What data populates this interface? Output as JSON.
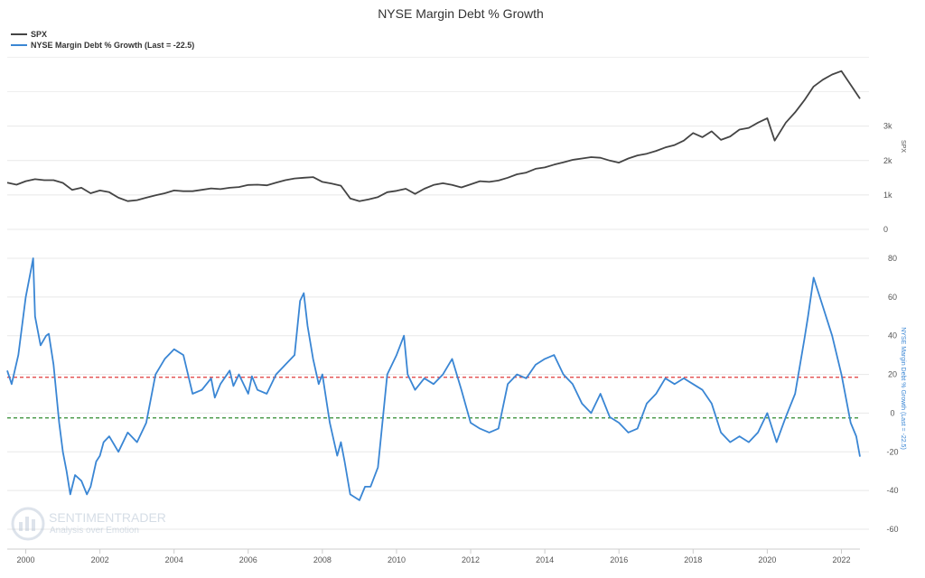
{
  "chart_data": {
    "type": "line",
    "title": "NYSE Margin Debt % Growth",
    "legend_position": "top-left",
    "x_ticks": [
      "2000",
      "2002",
      "2004",
      "2006",
      "2008",
      "2010",
      "2012",
      "2014",
      "2016",
      "2018",
      "2020",
      "2022"
    ],
    "x_range": [
      1999.5,
      2022.5
    ],
    "series": [
      {
        "name": "SPX",
        "color": "#444444",
        "axis_label": "SPX",
        "y_ticks": [
          "0",
          "1k",
          "2k",
          "3k"
        ],
        "ylim": [
          0,
          5300
        ],
        "points": [
          [
            1999.5,
            1360
          ],
          [
            1999.75,
            1300
          ],
          [
            2000.0,
            1400
          ],
          [
            2000.25,
            1460
          ],
          [
            2000.5,
            1430
          ],
          [
            2000.75,
            1430
          ],
          [
            2001.0,
            1350
          ],
          [
            2001.25,
            1150
          ],
          [
            2001.5,
            1210
          ],
          [
            2001.75,
            1050
          ],
          [
            2002.0,
            1130
          ],
          [
            2002.25,
            1080
          ],
          [
            2002.5,
            920
          ],
          [
            2002.75,
            820
          ],
          [
            2003.0,
            850
          ],
          [
            2003.25,
            920
          ],
          [
            2003.5,
            990
          ],
          [
            2003.75,
            1050
          ],
          [
            2004.0,
            1130
          ],
          [
            2004.25,
            1110
          ],
          [
            2004.5,
            1110
          ],
          [
            2004.75,
            1150
          ],
          [
            2005.0,
            1190
          ],
          [
            2005.25,
            1170
          ],
          [
            2005.5,
            1210
          ],
          [
            2005.75,
            1230
          ],
          [
            2006.0,
            1290
          ],
          [
            2006.25,
            1300
          ],
          [
            2006.5,
            1280
          ],
          [
            2006.75,
            1360
          ],
          [
            2007.0,
            1430
          ],
          [
            2007.25,
            1480
          ],
          [
            2007.5,
            1500
          ],
          [
            2007.75,
            1520
          ],
          [
            2008.0,
            1380
          ],
          [
            2008.25,
            1330
          ],
          [
            2008.5,
            1270
          ],
          [
            2008.75,
            900
          ],
          [
            2009.0,
            820
          ],
          [
            2009.25,
            870
          ],
          [
            2009.5,
            940
          ],
          [
            2009.75,
            1080
          ],
          [
            2010.0,
            1120
          ],
          [
            2010.25,
            1180
          ],
          [
            2010.5,
            1030
          ],
          [
            2010.75,
            1180
          ],
          [
            2011.0,
            1290
          ],
          [
            2011.25,
            1340
          ],
          [
            2011.5,
            1290
          ],
          [
            2011.75,
            1220
          ],
          [
            2012.0,
            1310
          ],
          [
            2012.25,
            1400
          ],
          [
            2012.5,
            1380
          ],
          [
            2012.75,
            1420
          ],
          [
            2013.0,
            1500
          ],
          [
            2013.25,
            1600
          ],
          [
            2013.5,
            1650
          ],
          [
            2013.75,
            1760
          ],
          [
            2014.0,
            1800
          ],
          [
            2014.25,
            1880
          ],
          [
            2014.5,
            1950
          ],
          [
            2014.75,
            2020
          ],
          [
            2015.0,
            2060
          ],
          [
            2015.25,
            2100
          ],
          [
            2015.5,
            2080
          ],
          [
            2015.75,
            2000
          ],
          [
            2016.0,
            1940
          ],
          [
            2016.25,
            2060
          ],
          [
            2016.5,
            2150
          ],
          [
            2016.75,
            2200
          ],
          [
            2017.0,
            2280
          ],
          [
            2017.25,
            2380
          ],
          [
            2017.5,
            2450
          ],
          [
            2017.75,
            2580
          ],
          [
            2018.0,
            2800
          ],
          [
            2018.25,
            2680
          ],
          [
            2018.5,
            2850
          ],
          [
            2018.75,
            2600
          ],
          [
            2019.0,
            2700
          ],
          [
            2019.25,
            2900
          ],
          [
            2019.5,
            2950
          ],
          [
            2019.75,
            3100
          ],
          [
            2020.0,
            3230
          ],
          [
            2020.2,
            2580
          ],
          [
            2020.5,
            3100
          ],
          [
            2020.75,
            3400
          ],
          [
            2021.0,
            3750
          ],
          [
            2021.25,
            4150
          ],
          [
            2021.5,
            4350
          ],
          [
            2021.75,
            4500
          ],
          [
            2022.0,
            4600
          ],
          [
            2022.25,
            4200
          ],
          [
            2022.5,
            3800
          ]
        ]
      },
      {
        "name": "NYSE Margin Debt % Growth (Last = -22.5)",
        "color": "#3a86d4",
        "axis_label": "NYSE Margin Debt % Growth (Last = -22.5)",
        "y_ticks": [
          "-60",
          "-40",
          "-20",
          "0",
          "20",
          "40",
          "60",
          "80"
        ],
        "ylim": [
          -60,
          80
        ],
        "points": [
          [
            1999.5,
            22
          ],
          [
            1999.62,
            15
          ],
          [
            1999.8,
            30
          ],
          [
            2000.0,
            60
          ],
          [
            2000.15,
            75
          ],
          [
            2000.2,
            80
          ],
          [
            2000.25,
            50
          ],
          [
            2000.4,
            35
          ],
          [
            2000.55,
            40
          ],
          [
            2000.62,
            41
          ],
          [
            2000.75,
            25
          ],
          [
            2000.9,
            -5
          ],
          [
            2001.0,
            -20
          ],
          [
            2001.1,
            -30
          ],
          [
            2001.2,
            -42
          ],
          [
            2001.33,
            -32
          ],
          [
            2001.5,
            -35
          ],
          [
            2001.65,
            -42
          ],
          [
            2001.75,
            -38
          ],
          [
            2001.9,
            -25
          ],
          [
            2002.0,
            -22
          ],
          [
            2002.1,
            -15
          ],
          [
            2002.25,
            -12
          ],
          [
            2002.5,
            -20
          ],
          [
            2002.75,
            -10
          ],
          [
            2003.0,
            -15
          ],
          [
            2003.25,
            -5
          ],
          [
            2003.5,
            20
          ],
          [
            2003.75,
            28
          ],
          [
            2004.0,
            33
          ],
          [
            2004.25,
            30
          ],
          [
            2004.5,
            10
          ],
          [
            2004.75,
            12
          ],
          [
            2005.0,
            18
          ],
          [
            2005.1,
            8
          ],
          [
            2005.25,
            15
          ],
          [
            2005.5,
            22
          ],
          [
            2005.6,
            14
          ],
          [
            2005.75,
            20
          ],
          [
            2006.0,
            10
          ],
          [
            2006.1,
            19
          ],
          [
            2006.25,
            12
          ],
          [
            2006.5,
            10
          ],
          [
            2006.75,
            20
          ],
          [
            2007.0,
            25
          ],
          [
            2007.25,
            30
          ],
          [
            2007.4,
            58
          ],
          [
            2007.5,
            62
          ],
          [
            2007.6,
            45
          ],
          [
            2007.75,
            28
          ],
          [
            2007.9,
            15
          ],
          [
            2008.0,
            20
          ],
          [
            2008.2,
            -5
          ],
          [
            2008.4,
            -22
          ],
          [
            2008.5,
            -15
          ],
          [
            2008.6,
            -25
          ],
          [
            2008.75,
            -42
          ],
          [
            2009.0,
            -45
          ],
          [
            2009.15,
            -38
          ],
          [
            2009.3,
            -38
          ],
          [
            2009.5,
            -28
          ],
          [
            2009.75,
            20
          ],
          [
            2010.0,
            30
          ],
          [
            2010.2,
            40
          ],
          [
            2010.3,
            20
          ],
          [
            2010.5,
            12
          ],
          [
            2010.75,
            18
          ],
          [
            2011.0,
            15
          ],
          [
            2011.25,
            20
          ],
          [
            2011.5,
            28
          ],
          [
            2011.75,
            12
          ],
          [
            2012.0,
            -5
          ],
          [
            2012.25,
            -8
          ],
          [
            2012.5,
            -10
          ],
          [
            2012.75,
            -8
          ],
          [
            2013.0,
            15
          ],
          [
            2013.25,
            20
          ],
          [
            2013.5,
            18
          ],
          [
            2013.75,
            25
          ],
          [
            2014.0,
            28
          ],
          [
            2014.25,
            30
          ],
          [
            2014.5,
            20
          ],
          [
            2014.75,
            15
          ],
          [
            2015.0,
            5
          ],
          [
            2015.25,
            0
          ],
          [
            2015.5,
            10
          ],
          [
            2015.75,
            -2
          ],
          [
            2016.0,
            -5
          ],
          [
            2016.25,
            -10
          ],
          [
            2016.5,
            -8
          ],
          [
            2016.75,
            5
          ],
          [
            2017.0,
            10
          ],
          [
            2017.25,
            18
          ],
          [
            2017.5,
            15
          ],
          [
            2017.75,
            18
          ],
          [
            2018.0,
            15
          ],
          [
            2018.25,
            12
          ],
          [
            2018.5,
            5
          ],
          [
            2018.75,
            -10
          ],
          [
            2019.0,
            -15
          ],
          [
            2019.25,
            -12
          ],
          [
            2019.5,
            -15
          ],
          [
            2019.75,
            -10
          ],
          [
            2020.0,
            0
          ],
          [
            2020.25,
            -15
          ],
          [
            2020.5,
            -2
          ],
          [
            2020.75,
            10
          ],
          [
            2021.0,
            38
          ],
          [
            2021.1,
            50
          ],
          [
            2021.25,
            70
          ],
          [
            2021.5,
            55
          ],
          [
            2021.75,
            40
          ],
          [
            2022.0,
            20
          ],
          [
            2022.25,
            -5
          ],
          [
            2022.4,
            -12
          ],
          [
            2022.5,
            -22.5
          ]
        ]
      }
    ],
    "reference_lines": [
      {
        "name": "upper-threshold",
        "value": 18.5,
        "color": "#e03a3a",
        "style": "dashed"
      },
      {
        "name": "lower-threshold",
        "value": -2.5,
        "color": "#2e8b2e",
        "style": "dashed"
      }
    ],
    "grid": true
  },
  "watermark": {
    "brand": "SENTIMENTRADER",
    "tagline": "Analysis over Emotion"
  }
}
